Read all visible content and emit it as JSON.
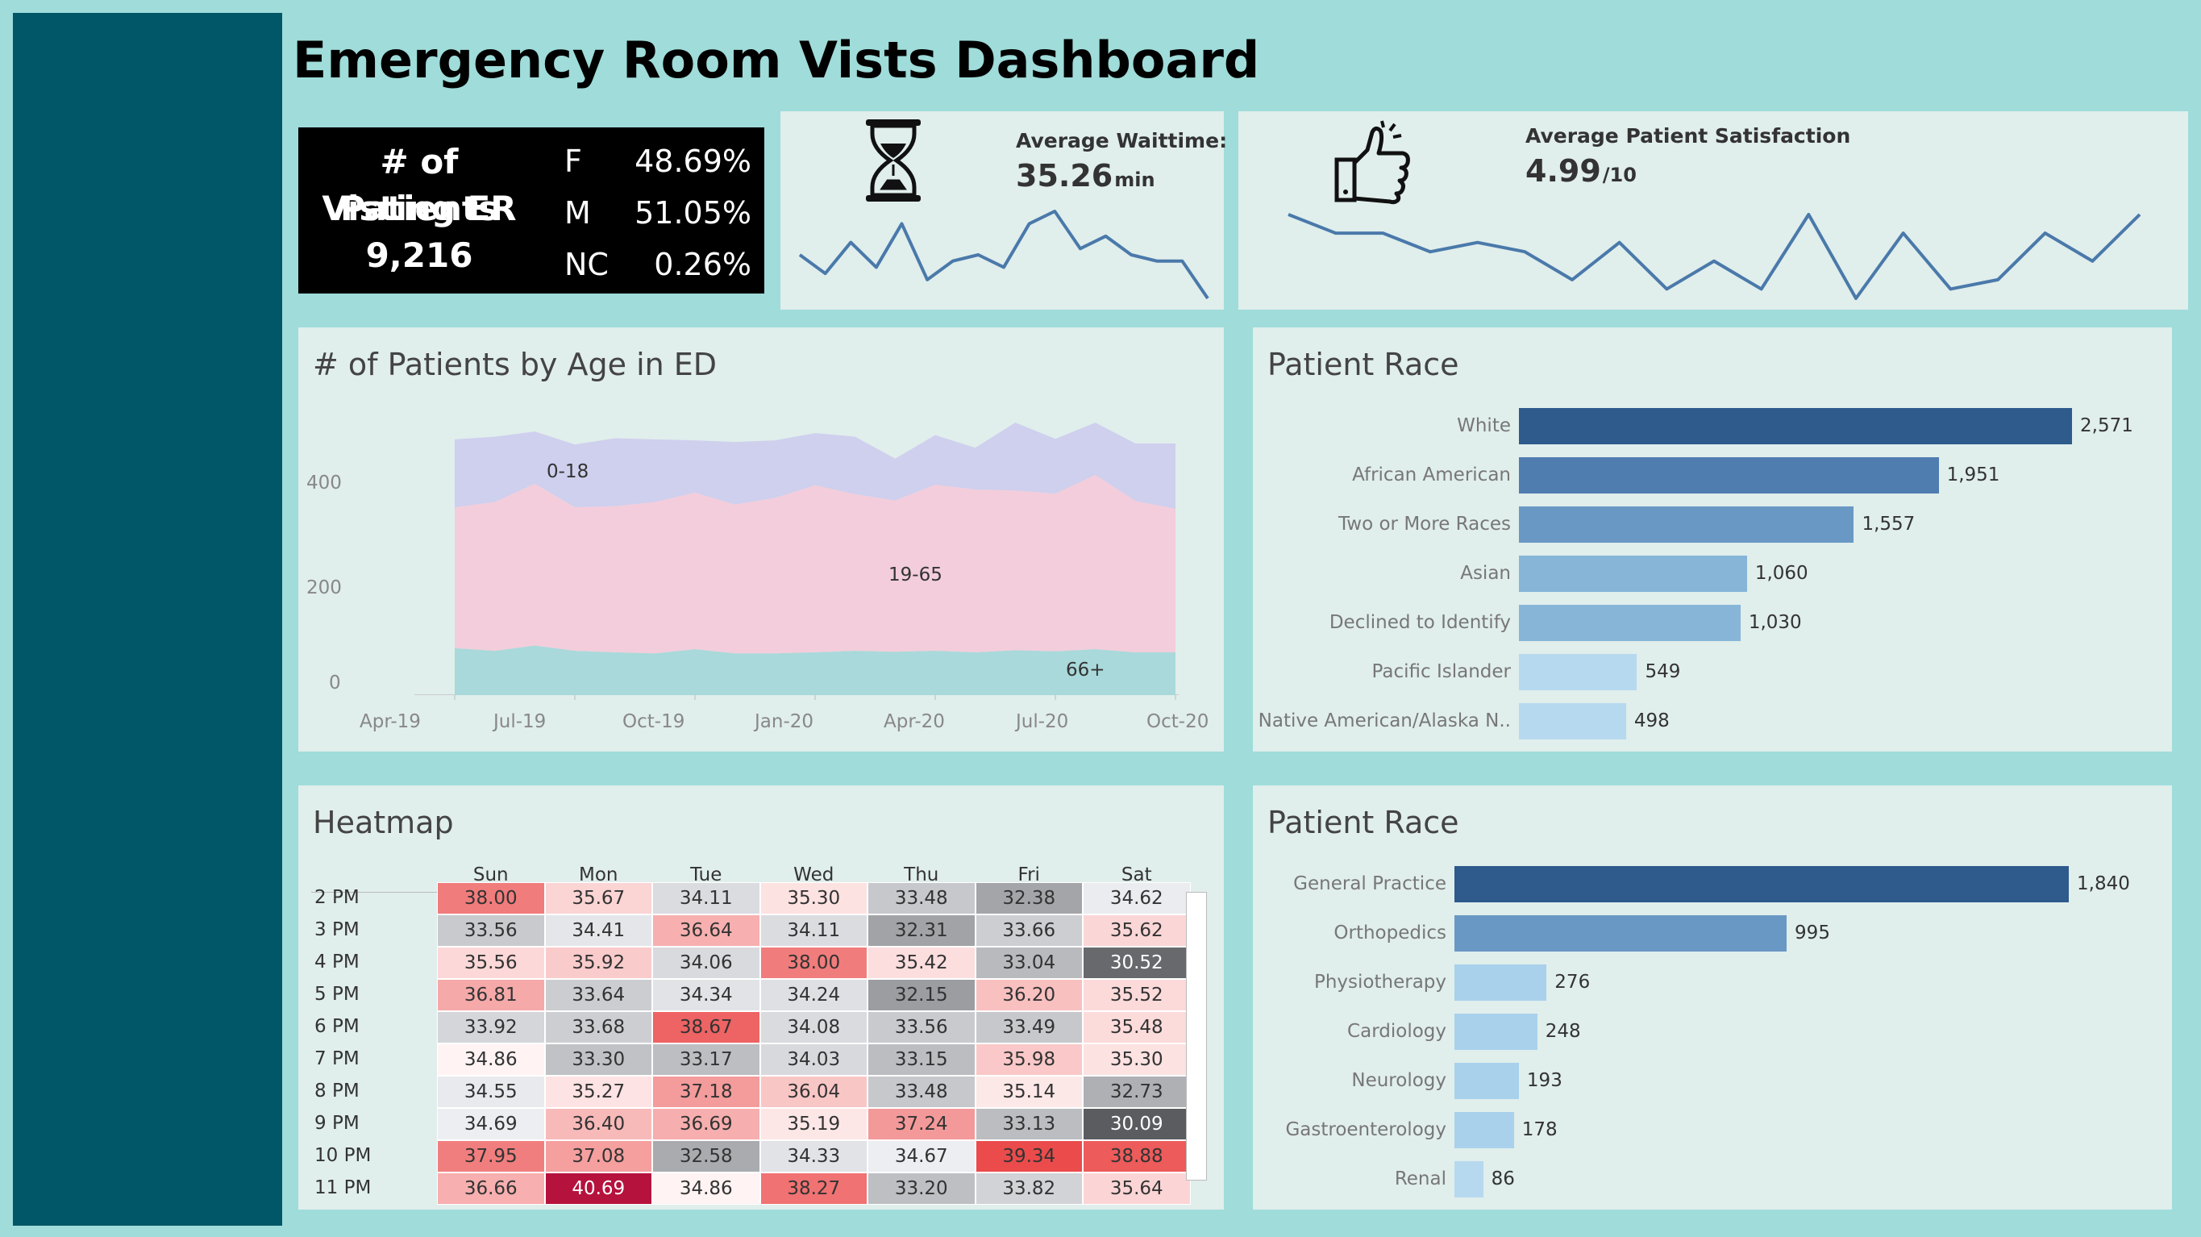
{
  "dashboard": {
    "title": "Emergency Room Vists Dashboard"
  },
  "patients_box": {
    "title_lines": [
      "# of Patients",
      "Visting ER",
      "9,216"
    ],
    "genders": [
      {
        "label": "F",
        "value": "48.69%"
      },
      {
        "label": "M",
        "value": "51.05%"
      },
      {
        "label": "NC",
        "value": "0.26%"
      }
    ]
  },
  "waittime": {
    "label": "Average Waittime:",
    "value": "35.26",
    "unit": "min",
    "icon": "hourglass-icon",
    "sparkline": [
      37,
      34,
      39,
      35,
      42,
      33,
      36,
      37,
      35,
      42,
      44,
      38,
      40,
      37,
      36,
      36,
      30
    ]
  },
  "satisfaction": {
    "label": "Average Patient Satisfaction",
    "value": "4.99",
    "unit": "/10",
    "icon": "thumbs-up-icon",
    "sparkline": [
      5.3,
      5.1,
      5.1,
      4.9,
      5.0,
      4.9,
      4.6,
      5.0,
      4.5,
      4.8,
      4.5,
      5.3,
      4.4,
      5.1,
      4.5,
      4.6,
      5.1,
      4.8,
      5.3
    ]
  },
  "age_chart": {
    "title": "# of Patients by Age in ED",
    "y_ticks": [
      "400",
      "200",
      "0"
    ],
    "x_ticks": [
      "Apr-19",
      "Jul-19",
      "Oct-19",
      "Jan-20",
      "Apr-20",
      "Jul-20",
      "Oct-20"
    ],
    "labels": {
      "young": "0-18",
      "adult": "19-65",
      "senior": "66+"
    }
  },
  "race_chart": {
    "title": "Patient Race",
    "items": [
      {
        "label": "White",
        "value": "2,571"
      },
      {
        "label": "African American",
        "value": "1,951"
      },
      {
        "label": "Two or More Races",
        "value": "1,557"
      },
      {
        "label": "Asian",
        "value": "1,060"
      },
      {
        "label": "Declined to Identify",
        "value": "1,030"
      },
      {
        "label": "Pacific Islander",
        "value": "549"
      },
      {
        "label": "Native American/Alaska N..",
        "value": "498"
      }
    ],
    "colors": [
      "#2e5a8c",
      "#4f7db0",
      "#6a98c4",
      "#86b5d8",
      "#86b5d8",
      "#b7d9ef",
      "#b7d9ef"
    ]
  },
  "dept_chart": {
    "title": "Patient Race",
    "items": [
      {
        "label": "General Practice",
        "value": "1,840"
      },
      {
        "label": "Orthopedics",
        "value": "995"
      },
      {
        "label": "Physiotherapy",
        "value": "276"
      },
      {
        "label": "Cardiology",
        "value": "248"
      },
      {
        "label": "Neurology",
        "value": "193"
      },
      {
        "label": "Gastroenterology",
        "value": "178"
      },
      {
        "label": "Renal",
        "value": "86"
      }
    ],
    "colors": [
      "#2e5a8c",
      "#6a98c4",
      "#a9d1ec",
      "#a9d1ec",
      "#a9d1ec",
      "#a9d1ec",
      "#b7d9ef"
    ]
  },
  "heatmap": {
    "title": "Heatmap",
    "days": [
      "Sun",
      "Mon",
      "Tue",
      "Wed",
      "Thu",
      "Fri",
      "Sat"
    ],
    "rows": [
      {
        "hour": "2 PM",
        "values": [
          "38.00",
          "35.67",
          "34.11",
          "35.30",
          "33.48",
          "32.38",
          "34.62"
        ]
      },
      {
        "hour": "3 PM",
        "values": [
          "33.56",
          "34.41",
          "36.64",
          "34.11",
          "32.31",
          "33.66",
          "35.62"
        ]
      },
      {
        "hour": "4 PM",
        "values": [
          "35.56",
          "35.92",
          "34.06",
          "38.00",
          "35.42",
          "33.04",
          "30.52"
        ]
      },
      {
        "hour": "5 PM",
        "values": [
          "36.81",
          "33.64",
          "34.34",
          "34.24",
          "32.15",
          "36.20",
          "35.52"
        ]
      },
      {
        "hour": "6 PM",
        "values": [
          "33.92",
          "33.68",
          "38.67",
          "34.08",
          "33.56",
          "33.49",
          "35.48"
        ]
      },
      {
        "hour": "7 PM",
        "values": [
          "34.86",
          "33.30",
          "33.17",
          "34.03",
          "33.15",
          "35.98",
          "35.30"
        ]
      },
      {
        "hour": "8 PM",
        "values": [
          "34.55",
          "35.27",
          "37.18",
          "36.04",
          "33.48",
          "35.14",
          "32.73"
        ]
      },
      {
        "hour": "9 PM",
        "values": [
          "34.69",
          "36.40",
          "36.69",
          "35.19",
          "37.24",
          "33.13",
          "30.09"
        ]
      },
      {
        "hour": "10 PM",
        "values": [
          "37.95",
          "37.08",
          "32.58",
          "34.33",
          "34.67",
          "39.34",
          "38.88"
        ]
      },
      {
        "hour": "11 PM",
        "values": [
          "36.66",
          "40.69",
          "34.86",
          "38.27",
          "33.20",
          "33.82",
          "35.64"
        ]
      }
    ]
  },
  "chart_data": [
    {
      "type": "area",
      "title": "# of Patients by Age in ED",
      "x": [
        "Apr-19",
        "May-19",
        "Jun-19",
        "Jul-19",
        "Aug-19",
        "Sep-19",
        "Oct-19",
        "Nov-19",
        "Dec-19",
        "Jan-20",
        "Feb-20",
        "Mar-20",
        "Apr-20",
        "May-20",
        "Jun-20",
        "Jul-20",
        "Aug-20",
        "Sep-20",
        "Oct-20"
      ],
      "ylim": [
        0,
        550
      ],
      "series": [
        {
          "name": "66+",
          "values": [
            90,
            85,
            95,
            85,
            82,
            80,
            88,
            80,
            80,
            82,
            85,
            83,
            85,
            82,
            86,
            84,
            88,
            82,
            82
          ]
        },
        {
          "name": "19-65",
          "values": [
            270,
            285,
            310,
            275,
            280,
            290,
            300,
            285,
            298,
            320,
            300,
            290,
            318,
            312,
            306,
            302,
            334,
            290,
            275
          ]
        },
        {
          "name": "0-18",
          "values": [
            130,
            125,
            100,
            120,
            130,
            120,
            100,
            120,
            110,
            100,
            110,
            80,
            95,
            80,
            130,
            105,
            100,
            110,
            125
          ]
        }
      ]
    },
    {
      "type": "bar",
      "title": "Patient Race",
      "categories": [
        "White",
        "African American",
        "Two or More Races",
        "Asian",
        "Declined to Identify",
        "Pacific Islander",
        "Native American/Alaska N.."
      ],
      "values": [
        2571,
        1951,
        1557,
        1060,
        1030,
        549,
        498
      ]
    },
    {
      "type": "bar",
      "title": "Patient Race",
      "categories": [
        "General Practice",
        "Orthopedics",
        "Physiotherapy",
        "Cardiology",
        "Neurology",
        "Gastroenterology",
        "Renal"
      ],
      "values": [
        1840,
        995,
        276,
        248,
        193,
        178,
        86
      ]
    },
    {
      "type": "line",
      "title": "Average Waittime:",
      "values": [
        37,
        34,
        39,
        35,
        42,
        33,
        36,
        37,
        35,
        42,
        44,
        38,
        40,
        37,
        36,
        36,
        30
      ]
    },
    {
      "type": "line",
      "title": "Average Patient Satisfaction",
      "values": [
        5.3,
        5.1,
        5.1,
        4.9,
        5.0,
        4.9,
        4.6,
        5.0,
        4.5,
        4.8,
        4.5,
        5.3,
        4.4,
        5.1,
        4.5,
        4.6,
        5.1,
        4.8,
        5.3
      ]
    },
    {
      "type": "heatmap",
      "title": "Heatmap",
      "x": [
        "Sun",
        "Mon",
        "Tue",
        "Wed",
        "Thu",
        "Fri",
        "Sat"
      ],
      "y": [
        "2 PM",
        "3 PM",
        "4 PM",
        "5 PM",
        "6 PM",
        "7 PM",
        "8 PM",
        "9 PM",
        "10 PM",
        "11 PM"
      ]
    }
  ]
}
